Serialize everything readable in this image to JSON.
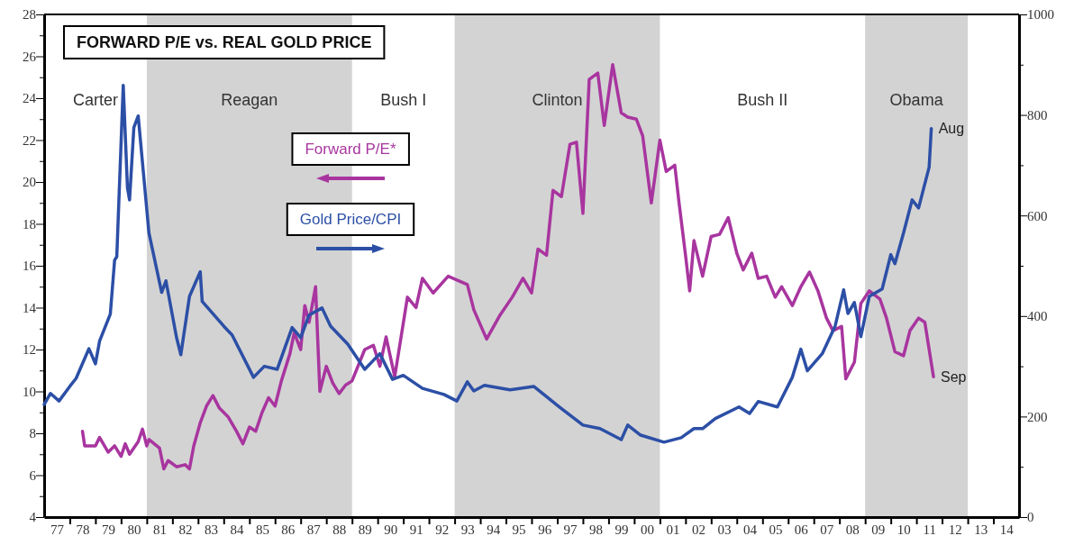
{
  "chart_data": {
    "type": "line",
    "title": "FORWARD P/E vs. REAL GOLD PRICE",
    "xlim": [
      "1977-01-01",
      "2015-01-01"
    ],
    "xticks": [
      {
        "value": "1977-07-01",
        "label": "77"
      },
      {
        "value": "1978-07-01",
        "label": "78"
      },
      {
        "value": "1979-07-01",
        "label": "79"
      },
      {
        "value": "1980-07-01",
        "label": "80"
      },
      {
        "value": "1981-07-01",
        "label": "81"
      },
      {
        "value": "1982-07-01",
        "label": "82"
      },
      {
        "value": "1983-07-01",
        "label": "83"
      },
      {
        "value": "1984-07-01",
        "label": "84"
      },
      {
        "value": "1985-07-01",
        "label": "85"
      },
      {
        "value": "1986-07-01",
        "label": "86"
      },
      {
        "value": "1987-07-01",
        "label": "87"
      },
      {
        "value": "1988-07-01",
        "label": "88"
      },
      {
        "value": "1989-07-01",
        "label": "89"
      },
      {
        "value": "1990-07-01",
        "label": "90"
      },
      {
        "value": "1991-07-01",
        "label": "91"
      },
      {
        "value": "1992-07-01",
        "label": "92"
      },
      {
        "value": "1993-07-01",
        "label": "93"
      },
      {
        "value": "1994-07-01",
        "label": "94"
      },
      {
        "value": "1995-07-01",
        "label": "95"
      },
      {
        "value": "1996-07-01",
        "label": "96"
      },
      {
        "value": "1997-07-01",
        "label": "97"
      },
      {
        "value": "1998-07-01",
        "label": "98"
      },
      {
        "value": "1999-07-01",
        "label": "99"
      },
      {
        "value": "2000-07-01",
        "label": "00"
      },
      {
        "value": "2001-07-01",
        "label": "01"
      },
      {
        "value": "2002-07-01",
        "label": "02"
      },
      {
        "value": "2003-07-01",
        "label": "03"
      },
      {
        "value": "2004-07-01",
        "label": "04"
      },
      {
        "value": "2005-07-01",
        "label": "05"
      },
      {
        "value": "2006-07-01",
        "label": "06"
      },
      {
        "value": "2007-07-01",
        "label": "07"
      },
      {
        "value": "2008-07-01",
        "label": "08"
      },
      {
        "value": "2009-07-01",
        "label": "09"
      },
      {
        "value": "2010-07-01",
        "label": "10"
      },
      {
        "value": "2011-07-01",
        "label": "11"
      },
      {
        "value": "2012-07-01",
        "label": "12"
      },
      {
        "value": "2013-07-01",
        "label": "13"
      },
      {
        "value": "2014-07-01",
        "label": "14"
      },
      {
        "value": "1978-01-01",
        "label": null
      },
      {
        "value": "1979-01-01",
        "label": null
      },
      {
        "value": "1980-01-01",
        "label": null
      },
      {
        "value": "1981-01-01",
        "label": null
      },
      {
        "value": "1982-01-01",
        "label": null
      },
      {
        "value": "1983-01-01",
        "label": null
      },
      {
        "value": "1984-01-01",
        "label": null
      },
      {
        "value": "1985-01-01",
        "label": null
      },
      {
        "value": "1986-01-01",
        "label": null
      },
      {
        "value": "1987-01-01",
        "label": null
      },
      {
        "value": "1988-01-01",
        "label": null
      },
      {
        "value": "1989-01-01",
        "label": null
      },
      {
        "value": "1990-01-01",
        "label": null
      },
      {
        "value": "1991-01-01",
        "label": null
      },
      {
        "value": "1992-01-01",
        "label": null
      },
      {
        "value": "1993-01-01",
        "label": null
      },
      {
        "value": "1994-01-01",
        "label": null
      },
      {
        "value": "1995-01-01",
        "label": null
      },
      {
        "value": "1996-01-01",
        "label": null
      },
      {
        "value": "1997-01-01",
        "label": null
      },
      {
        "value": "1998-01-01",
        "label": null
      },
      {
        "value": "1999-01-01",
        "label": null
      },
      {
        "value": "2000-01-01",
        "label": null
      },
      {
        "value": "2001-01-01",
        "label": null
      },
      {
        "value": "2002-01-01",
        "label": null
      },
      {
        "value": "2003-01-01",
        "label": null
      },
      {
        "value": "2004-01-01",
        "label": null
      },
      {
        "value": "2005-01-01",
        "label": null
      },
      {
        "value": "2006-01-01",
        "label": null
      },
      {
        "value": "2007-01-01",
        "label": null
      },
      {
        "value": "2008-01-01",
        "label": null
      },
      {
        "value": "2009-01-01",
        "label": null
      },
      {
        "value": "2010-01-01",
        "label": null
      },
      {
        "value": "2011-01-01",
        "label": null
      },
      {
        "value": "2012-01-01",
        "label": null
      },
      {
        "value": "2013-01-01",
        "label": null
      },
      {
        "value": "2014-01-01",
        "label": null
      }
    ],
    "ylim": [
      4,
      28
    ],
    "yticks": [
      4,
      {
        "value": 5,
        "label": null
      },
      6,
      {
        "value": 7,
        "label": null
      },
      8,
      {
        "value": 9,
        "label": null
      },
      10,
      {
        "value": 11,
        "label": null
      },
      12,
      {
        "value": 13,
        "label": null
      },
      14,
      {
        "value": 15,
        "label": null
      },
      16,
      {
        "value": 17,
        "label": null
      },
      18,
      {
        "value": 19,
        "label": null
      },
      20,
      {
        "value": 21,
        "label": null
      },
      22,
      {
        "value": 23,
        "label": null
      },
      24,
      {
        "value": 25,
        "label": null
      },
      26,
      {
        "value": 27,
        "label": null
      },
      28
    ],
    "y2lim": [
      0,
      1000
    ],
    "y2ticks": [
      0,
      {
        "value": 100,
        "label": null
      },
      200,
      {
        "value": 300,
        "label": null
      },
      400,
      {
        "value": 500,
        "label": null
      },
      600,
      {
        "value": 700,
        "label": null
      },
      800,
      {
        "value": 900,
        "label": null
      },
      1000
    ],
    "grid": false,
    "legend": "top",
    "bands": [
      {
        "axis": "x",
        "from": "1981-01-01",
        "to": "1989-01-01",
        "label": "Reagan",
        "color": "#d3d3d3"
      },
      {
        "axis": "x",
        "from": "1993-01-01",
        "to": "2001-01-01",
        "label": "Clinton",
        "color": "#d3d3d3"
      },
      {
        "axis": "x",
        "from": "2009-01-01",
        "to": "2013-01-01",
        "label": "Obama",
        "color": "#d3d3d3"
      }
    ],
    "annotations": [
      "Carter",
      "Bush I",
      "Bush II",
      {
        "text": "Aug",
        "x": "2011-08",
        "y": 22.6
      },
      {
        "text": "Sep",
        "x": "2011-09",
        "y": 10.7
      }
    ],
    "series": [
      {
        "name": "Forward P/E*",
        "color": "#a8359f",
        "x": [
          "1978-07",
          "1978-08",
          "1979-01",
          "1979-03",
          "1979-07",
          "1979-10",
          "1980-01",
          "1980-03",
          "1980-05",
          "1980-09",
          "1980-11",
          "1981-01",
          "1981-02",
          "1981-07",
          "1981-09",
          "1981-11",
          "1982-03",
          "1982-07",
          "1982-09",
          "1982-11",
          "1983-02",
          "1983-05",
          "1983-08",
          "1983-11",
          "1984-03",
          "1984-07",
          "1984-10",
          "1985-01",
          "1985-04",
          "1985-07",
          "1985-10",
          "1986-01",
          "1986-04",
          "1986-08",
          "1986-10",
          "1987-01",
          "1987-03",
          "1987-05",
          "1987-08",
          "1987-10",
          "1988-01",
          "1988-04",
          "1988-07",
          "1988-10",
          "1989-01",
          "1989-07",
          "1989-11",
          "1990-02",
          "1990-05",
          "1990-09",
          "1991-03",
          "1991-07",
          "1991-10",
          "1992-03",
          "1992-10",
          "1993-07",
          "1993-10",
          "1994-04",
          "1994-10",
          "1995-04",
          "1995-09",
          "1996-01",
          "1996-04",
          "1996-08",
          "1996-11",
          "1997-03",
          "1997-07",
          "1997-10",
          "1998-01",
          "1998-04",
          "1998-08",
          "1998-11",
          "1999-03",
          "1999-07",
          "1999-10",
          "2000-02",
          "2000-05",
          "2000-09",
          "2001-01",
          "2001-04",
          "2001-08",
          "2001-10",
          "2002-01",
          "2002-03",
          "2002-05",
          "2002-09",
          "2003-01",
          "2003-05",
          "2003-09",
          "2004-01",
          "2004-04",
          "2004-08",
          "2004-11",
          "2005-03",
          "2005-07",
          "2005-10",
          "2006-03",
          "2006-07",
          "2006-11",
          "2007-03",
          "2007-07",
          "2007-10",
          "2008-02",
          "2008-04",
          "2008-08",
          "2008-11",
          "2009-03",
          "2009-08",
          "2009-11",
          "2010-03",
          "2010-07",
          "2010-10",
          "2011-02",
          "2011-05",
          "2011-09"
        ],
        "values": [
          8.1,
          7.4,
          7.4,
          7.8,
          7.1,
          7.4,
          6.9,
          7.5,
          7.0,
          7.6,
          8.2,
          7.4,
          7.7,
          7.3,
          6.3,
          6.7,
          6.4,
          6.5,
          6.3,
          7.4,
          8.5,
          9.3,
          9.8,
          9.2,
          8.8,
          8.1,
          7.5,
          8.3,
          8.1,
          9.0,
          9.7,
          9.3,
          10.5,
          11.8,
          12.8,
          12.0,
          14.1,
          13.3,
          15.0,
          10.0,
          11.2,
          10.4,
          9.9,
          10.3,
          10.5,
          12.0,
          12.2,
          11.2,
          12.6,
          10.7,
          14.5,
          14.0,
          15.4,
          14.7,
          15.5,
          15.1,
          13.9,
          12.5,
          13.6,
          14.5,
          15.4,
          14.7,
          16.8,
          16.5,
          19.6,
          19.3,
          21.8,
          21.9,
          18.5,
          24.9,
          25.2,
          22.7,
          25.6,
          23.3,
          23.1,
          23.0,
          22.2,
          19.0,
          22.0,
          20.5,
          20.8,
          19.0,
          16.5,
          14.8,
          17.2,
          15.5,
          17.4,
          17.5,
          18.3,
          16.6,
          15.8,
          16.6,
          15.4,
          15.5,
          14.5,
          15.0,
          14.1,
          15.0,
          15.7,
          14.8,
          13.5,
          12.9,
          13.1,
          10.6,
          11.4,
          14.2,
          14.8,
          14.4,
          13.5,
          11.9,
          11.7,
          12.9,
          13.5,
          13.3,
          10.7
        ]
      },
      {
        "name": "Gold Price/CPI",
        "color": "#2c4fa6",
        "axis": "y2",
        "x": [
          "1977-01",
          "1977-04",
          "1977-08",
          "1978-01",
          "1978-04",
          "1978-10",
          "1979-01",
          "1979-03",
          "1979-08",
          "1979-10",
          "1979-11",
          "1980-02",
          "1980-04",
          "1980-05",
          "1980-07",
          "1980-09",
          "1981-02",
          "1981-08",
          "1981-10",
          "1982-03",
          "1982-05",
          "1982-09",
          "1983-02",
          "1983-03",
          "1984-01",
          "1984-05",
          "1985-03",
          "1985-08",
          "1986-02",
          "1986-09",
          "1987-01",
          "1987-05",
          "1987-11",
          "1988-03",
          "1988-11",
          "1989-07",
          "1990-02",
          "1990-08",
          "1991-01",
          "1991-10",
          "1992-08",
          "1993-02",
          "1993-07",
          "1993-10",
          "1994-03",
          "1995-03",
          "1996-02",
          "1997-02",
          "1998-01",
          "1998-09",
          "1999-07",
          "1999-10",
          "2000-04",
          "2001-03",
          "2001-11",
          "2002-05",
          "2002-09",
          "2003-03",
          "2004-02",
          "2004-07",
          "2004-11",
          "2005-08",
          "2006-03",
          "2006-07",
          "2006-10",
          "2007-05",
          "2007-11",
          "2008-03",
          "2008-05",
          "2008-08",
          "2008-11",
          "2009-03",
          "2009-09",
          "2010-01",
          "2010-03",
          "2010-07",
          "2010-11",
          "2011-02",
          "2011-07",
          "2011-08"
        ],
        "values": [
          224,
          246,
          231,
          260,
          276,
          335,
          305,
          350,
          404,
          511,
          518,
          859,
          655,
          631,
          775,
          798,
          565,
          447,
          470,
          357,
          323,
          439,
          488,
          429,
          380,
          362,
          278,
          300,
          294,
          377,
          357,
          402,
          416,
          380,
          344,
          294,
          325,
          274,
          282,
          256,
          244,
          231,
          269,
          251,
          262,
          253,
          260,
          219,
          183,
          176,
          154,
          183,
          163,
          149,
          158,
          176,
          176,
          196,
          219,
          206,
          230,
          219,
          278,
          334,
          291,
          325,
          380,
          452,
          405,
          427,
          359,
          439,
          454,
          522,
          504,
          565,
          631,
          615,
          696,
          773
        ]
      }
    ]
  }
}
